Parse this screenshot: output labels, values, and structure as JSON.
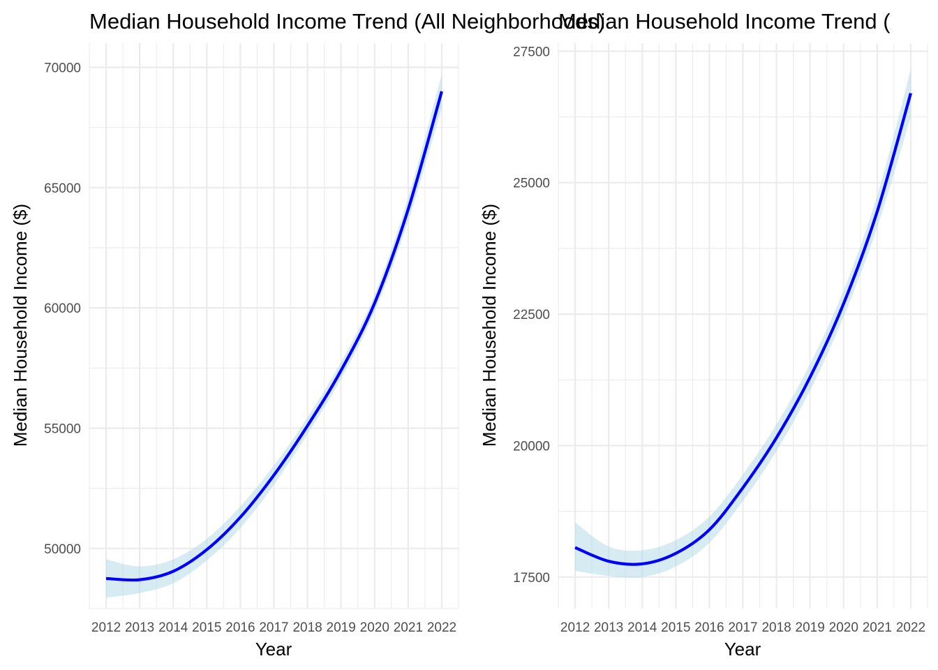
{
  "colors": {
    "line": "#0000ff",
    "ribbon": "#add8e6",
    "grid": "#ebebeb",
    "tick_text": "#4d4d4d"
  },
  "chart_data": [
    {
      "type": "line",
      "title": "Median Household Income Trend (All Neighborhoods)",
      "xlabel": "Year",
      "ylabel": "Median Household Income ($)",
      "xlim": [
        2011.5,
        2022.5
      ],
      "ylim": [
        47500,
        71000
      ],
      "x_ticks": [
        2012,
        2013,
        2014,
        2015,
        2016,
        2017,
        2018,
        2019,
        2020,
        2021,
        2022
      ],
      "y_ticks": [
        50000,
        55000,
        60000,
        65000,
        70000
      ],
      "grid": true,
      "legend": "none",
      "series": [
        {
          "x": [
            2012,
            2013,
            2014,
            2015,
            2016,
            2017,
            2018,
            2019,
            2020,
            2021,
            2022
          ],
          "y": [
            48750,
            48700,
            49050,
            49950,
            51300,
            53050,
            55100,
            57400,
            60200,
            64100,
            69000
          ],
          "lower": [
            47950,
            48150,
            48550,
            49500,
            50850,
            52650,
            54750,
            57050,
            59850,
            63600,
            68300
          ],
          "upper": [
            49550,
            49250,
            49550,
            50400,
            51750,
            53450,
            55450,
            57750,
            60550,
            64600,
            69700
          ]
        }
      ]
    },
    {
      "type": "line",
      "title": "Median Household Income Trend (",
      "xlabel": "Year",
      "ylabel": "Median Household Income ($)",
      "xlim": [
        2011.5,
        2022.5
      ],
      "ylim": [
        16900,
        27650
      ],
      "x_ticks": [
        2012,
        2013,
        2014,
        2015,
        2016,
        2017,
        2018,
        2019,
        2020,
        2021,
        2022
      ],
      "y_ticks": [
        17500,
        20000,
        22500,
        25000,
        27500
      ],
      "grid": true,
      "legend": "none",
      "series": [
        {
          "x": [
            2012,
            2013,
            2014,
            2015,
            2016,
            2017,
            2018,
            2019,
            2020,
            2021,
            2022
          ],
          "y": [
            18060,
            17800,
            17750,
            17950,
            18400,
            19200,
            20150,
            21300,
            22700,
            24450,
            26700
          ],
          "lower": [
            17620,
            17520,
            17500,
            17700,
            18150,
            18950,
            19900,
            21050,
            22450,
            24150,
            26250
          ],
          "upper": [
            18540,
            18080,
            18010,
            18200,
            18650,
            19450,
            20400,
            21550,
            22950,
            24750,
            27150
          ]
        }
      ]
    }
  ]
}
